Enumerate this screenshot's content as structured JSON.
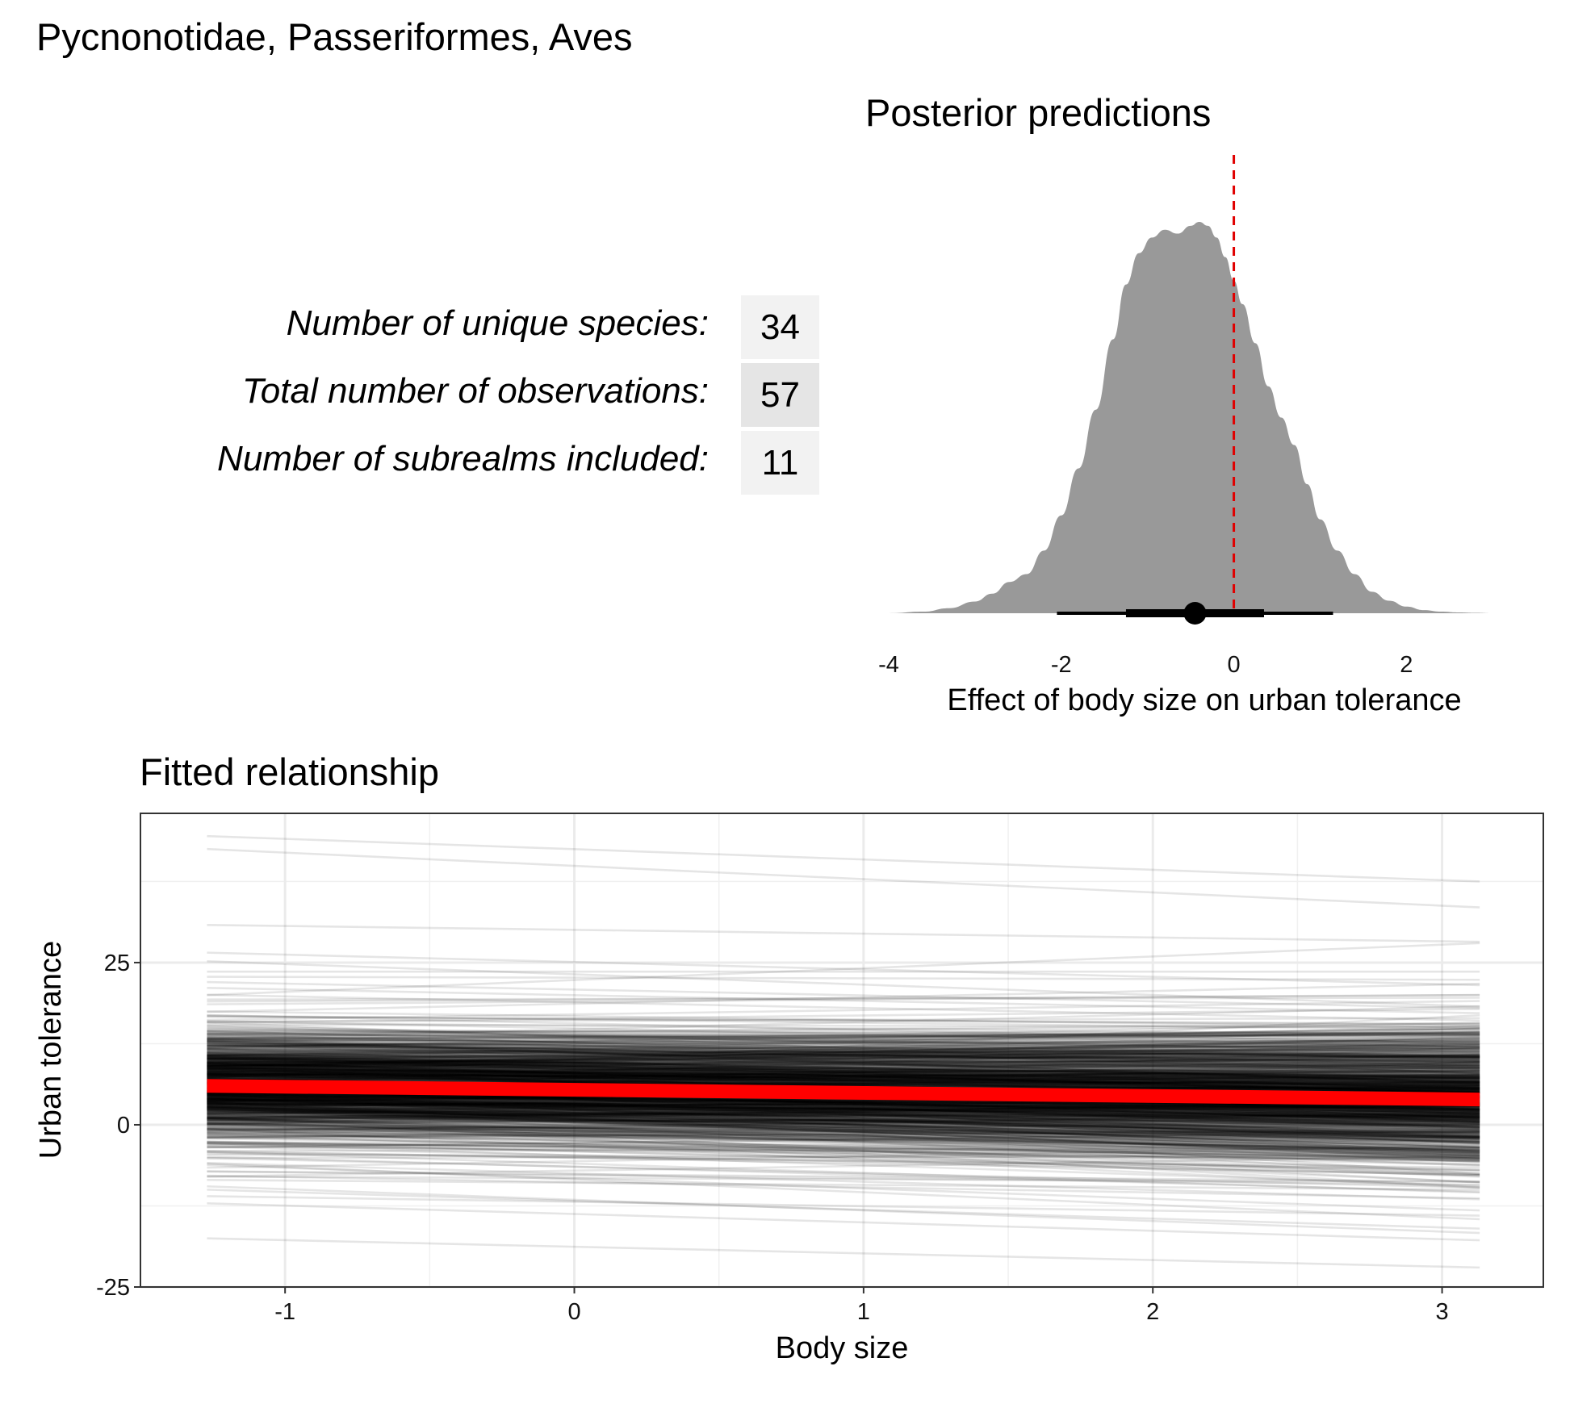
{
  "figure_title": "Pycnonotidae, Passeriformes, Aves",
  "stats": [
    {
      "label": "Number of unique species:",
      "value": "34",
      "fill": "#f2f2f2"
    },
    {
      "label": "Total number of observations:",
      "value": "57",
      "fill": "#e5e5e5"
    },
    {
      "label": "Number of subrealms included:",
      "value": "11",
      "fill": "#f2f2f2"
    }
  ],
  "chart_data": [
    {
      "type": "area",
      "title": "Posterior predictions",
      "xlabel": "Effect of body size on urban tolerance",
      "ylabel": "",
      "xlim": [
        -4,
        3.4
      ],
      "x_ticks": [
        -4,
        -2,
        0,
        2
      ],
      "x_tick_labels": [
        "-4",
        "-2",
        "0",
        "2"
      ],
      "grid": false,
      "fill_color": "#999999",
      "reference_line": {
        "x": 0,
        "color": "#e00000",
        "style": "dashed"
      },
      "density": {
        "x": [
          -4.0,
          -3.6,
          -3.3,
          -3.0,
          -2.8,
          -2.6,
          -2.4,
          -2.2,
          -2.0,
          -1.8,
          -1.6,
          -1.4,
          -1.25,
          -1.1,
          -0.95,
          -0.8,
          -0.65,
          -0.5,
          -0.4,
          -0.3,
          -0.2,
          -0.1,
          0.0,
          0.1,
          0.25,
          0.4,
          0.55,
          0.7,
          0.85,
          1.0,
          1.2,
          1.4,
          1.6,
          1.8,
          2.0,
          2.2,
          2.4,
          2.6,
          2.8,
          3.0,
          3.4
        ],
        "y": [
          0.0,
          0.004,
          0.013,
          0.03,
          0.05,
          0.08,
          0.1,
          0.16,
          0.25,
          0.37,
          0.52,
          0.7,
          0.84,
          0.92,
          0.96,
          0.98,
          0.97,
          0.99,
          1.0,
          0.99,
          0.96,
          0.91,
          0.85,
          0.79,
          0.69,
          0.58,
          0.5,
          0.43,
          0.33,
          0.24,
          0.16,
          0.1,
          0.055,
          0.032,
          0.017,
          0.008,
          0.004,
          0.002,
          0.001,
          0.0,
          0.0
        ]
      },
      "point_interval": {
        "point": -0.45,
        "inner": [
          -1.25,
          0.35
        ],
        "outer": [
          -2.05,
          1.15
        ]
      }
    },
    {
      "type": "line",
      "title": "Fitted relationship",
      "xlabel": "Body size",
      "ylabel": "Urban tolerance",
      "xlim": [
        -1.5,
        3.35
      ],
      "ylim": [
        -25,
        48
      ],
      "x_ticks": [
        -1,
        0,
        1,
        2,
        3
      ],
      "x_tick_labels": [
        "-1",
        "0",
        "1",
        "2",
        "3"
      ],
      "y_ticks": [
        -25,
        0,
        25
      ],
      "y_tick_labels": [
        "-25",
        "0",
        "25"
      ],
      "grid": true,
      "x_range": [
        -1.27,
        3.13
      ],
      "draws_color": "#000000",
      "draws_count": 1000,
      "highlighted_draws": [
        [
          44.5,
          37.5
        ],
        [
          42.5,
          33.5
        ],
        [
          30.8,
          28.2
        ],
        [
          21.1,
          17.2
        ],
        [
          23.6,
          23.6
        ],
        [
          -17.5,
          -22.0
        ],
        [
          -12.1,
          -17.8
        ],
        [
          -6.2,
          -13.2
        ],
        [
          20.0,
          28.0
        ],
        [
          -11.0,
          -14.0
        ],
        [
          19.0,
          20.0
        ],
        [
          -8.5,
          -10.0
        ],
        [
          22.0,
          18.0
        ],
        [
          -10.0,
          -16.0
        ]
      ],
      "mean_line": {
        "color": "#ff0000",
        "y_start": 6.0,
        "y_end": 3.9
      }
    }
  ]
}
